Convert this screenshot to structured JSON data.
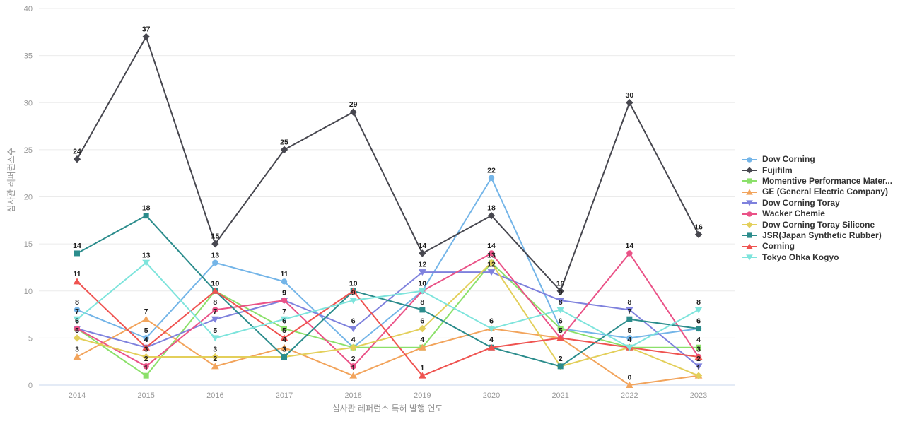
{
  "chart_data": {
    "type": "line",
    "title": "",
    "xlabel": "심사관 레퍼런스 특허 발행 연도",
    "ylabel": "심사관 레퍼런스수",
    "x": [
      2014,
      2015,
      2016,
      2017,
      2018,
      2019,
      2020,
      2021,
      2022,
      2023
    ],
    "ylim": [
      0,
      40
    ],
    "yticks": [
      0,
      5,
      10,
      15,
      20,
      25,
      30,
      35,
      40
    ],
    "grid": true,
    "legend_position": "right",
    "data_labels": true,
    "series": [
      {
        "name": "Dow Corning",
        "color": "#74b5e8",
        "marker": "circle",
        "values": [
          8,
          5,
          13,
          11,
          4,
          10,
          22,
          6,
          5,
          6
        ]
      },
      {
        "name": "Fujifilm",
        "color": "#47474f",
        "marker": "diamond",
        "values": [
          24,
          37,
          15,
          25,
          29,
          14,
          18,
          10,
          30,
          16
        ]
      },
      {
        "name": "Momentive Performance Mater...",
        "color": "#8be06a",
        "marker": "square",
        "values": [
          6,
          1,
          10,
          6,
          4,
          4,
          13,
          6,
          4,
          4
        ]
      },
      {
        "name": "GE (General Electric Company)",
        "color": "#f2a45c",
        "marker": "triangle-up",
        "values": [
          3,
          7,
          2,
          4,
          1,
          4,
          6,
          5,
          0,
          1
        ]
      },
      {
        "name": "Dow Corning Toray",
        "color": "#7e81dd",
        "marker": "triangle-down",
        "values": [
          6,
          4,
          7,
          9,
          6,
          12,
          12,
          9,
          8,
          2
        ]
      },
      {
        "name": "Wacker Chemie",
        "color": "#ea5287",
        "marker": "circle",
        "values": [
          6,
          2,
          8,
          9,
          2,
          10,
          14,
          5,
          14,
          3
        ]
      },
      {
        "name": "Dow Corning Toray Silicone",
        "color": "#e3cf5a",
        "marker": "diamond",
        "values": [
          5,
          3,
          3,
          3,
          4,
          6,
          13,
          2,
          4,
          1
        ]
      },
      {
        "name": "JSR(Japan Synthetic Rubber)",
        "color": "#2b8c8c",
        "marker": "square",
        "values": [
          14,
          18,
          10,
          3,
          10,
          8,
          4,
          2,
          7,
          6
        ]
      },
      {
        "name": "Corning",
        "color": "#ef5350",
        "marker": "triangle-up",
        "values": [
          11,
          4,
          10,
          5,
          10,
          1,
          4,
          5,
          4,
          3
        ]
      },
      {
        "name": "Tokyo Ohka Kogyo",
        "color": "#7ee4dc",
        "marker": "triangle-down",
        "values": [
          7,
          13,
          5,
          7,
          9,
          10,
          6,
          8,
          4,
          8
        ]
      }
    ]
  },
  "style": {
    "tick_color": "#999999",
    "grid_color": "#ebebeb",
    "axis_line_color": "#c9d7ee",
    "axis_title_color": "#909090",
    "label_color": "#1f1f1f"
  }
}
